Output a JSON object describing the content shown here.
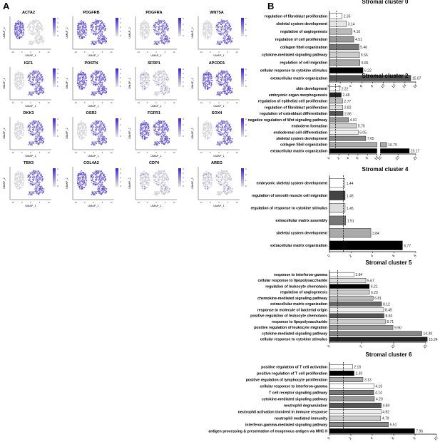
{
  "panel_a": {
    "letter": "A",
    "axis_x": "UMAP_1",
    "axis_y": "UMAP_2",
    "ticks": [
      "-10",
      "-5",
      "0",
      "5",
      "10"
    ],
    "maps": [
      {
        "gene": "ACTA2",
        "hot": "left",
        "legend": [
          "4",
          "3",
          "2",
          "1",
          "0"
        ]
      },
      {
        "gene": "PDGFRB",
        "hot": "all",
        "legend": [
          "4",
          "3",
          "2",
          "1",
          "0"
        ]
      },
      {
        "gene": "PDGFRA",
        "hot": "right",
        "legend": [
          "3",
          "2",
          "1",
          "0"
        ]
      },
      {
        "gene": "WNT5A",
        "hot": "right",
        "legend": [
          "3",
          "2",
          "1",
          "0"
        ]
      },
      {
        "gene": "IGF1",
        "hot": "right",
        "legend": [
          "4",
          "3",
          "2",
          "1",
          "0"
        ]
      },
      {
        "gene": "POSTN",
        "hot": "all",
        "legend": [
          "4",
          "3",
          "2",
          "1",
          "0"
        ]
      },
      {
        "gene": "SFRP1",
        "hot": "low",
        "legend": [
          "4",
          "3",
          "2",
          "1",
          "0"
        ]
      },
      {
        "gene": "APCDD1",
        "hot": "all",
        "legend": [
          "3",
          "2",
          "1",
          "0"
        ]
      },
      {
        "gene": "DKK3",
        "hot": "right",
        "legend": [
          "3",
          "2",
          "1",
          "0"
        ]
      },
      {
        "gene": "OSR2",
        "hot": "right",
        "legend": [
          "3",
          "2",
          "1",
          "0"
        ]
      },
      {
        "gene": "FGFR1",
        "hot": "all",
        "legend": [
          "3",
          "2",
          "1",
          "0"
        ]
      },
      {
        "gene": "SOX4",
        "hot": "right",
        "legend": [
          "3",
          "2",
          "1",
          "0"
        ]
      },
      {
        "gene": "TBX3",
        "hot": "right",
        "legend": [
          "3",
          "2",
          "1",
          "0"
        ]
      },
      {
        "gene": "COL4A2",
        "hot": "all",
        "legend": [
          "4",
          "3",
          "2",
          "1",
          "0"
        ]
      },
      {
        "gene": "CD74",
        "hot": "low",
        "legend": [
          "4",
          "3",
          "2",
          "1",
          "0"
        ]
      },
      {
        "gene": "AREG",
        "hot": "low",
        "legend": [
          "3",
          "2",
          "1",
          "0"
        ]
      }
    ]
  },
  "panel_b": {
    "letter": "B"
  },
  "chart_data": [
    {
      "type": "bar",
      "orientation": "horizontal",
      "title": "Stromal cluster 0",
      "categories": [
        "regulation of fibroblast proliferation",
        "skeletal system development",
        "regulation of angiogenesis",
        "regulation of cell proliferation",
        "collagen fibril organization",
        "cytokine-mediated signaling pathway",
        "regulation of cell migration",
        "cellular response to cytokine stimulus",
        "extracellular matrix organization"
      ],
      "values": [
        2.35,
        3.14,
        4.16,
        4.51,
        5.46,
        5.56,
        5.65,
        6.22,
        15.07
      ],
      "value_labels": [
        "2.35",
        "3.14",
        "4.16",
        "4.51",
        "5.46",
        "5.56",
        "5.65",
        "6.22",
        "15.07"
      ],
      "shades": [
        "#ffffff",
        "#e6e6e6",
        "#bbbbbb",
        "#999999",
        "#777777",
        "#cccccc",
        "#aaaaaa",
        "#000000",
        "#555555"
      ],
      "xlim": [
        0,
        16
      ],
      "xticks": [
        "0",
        "2",
        "4",
        "6",
        "8",
        "10",
        "12",
        "14",
        "16"
      ],
      "threshold": 1.3
    },
    {
      "type": "bar",
      "orientation": "horizontal",
      "title": "Stromal cluster 2",
      "categories": [
        "skin development",
        "embryonic organ morphogenesis",
        "regulation of epithelial cell proliferation",
        "regulation of fibroblast proliferation",
        "regulation of osteoblast differentiation",
        "negative regulation of Wnt signaling pathway",
        "endoderm formation",
        "endodermal cell differentiation",
        "skeletal system development",
        "collagen fibril organization",
        "extracellular matrix organization"
      ],
      "values": [
        2.22,
        2.48,
        2.77,
        2.82,
        2.86,
        4.01,
        5.7,
        6.05,
        7.65,
        16.79,
        23.17
      ],
      "value_labels": [
        "2.22",
        "2.48",
        "2.77",
        "2.82",
        "2.86",
        "4.01",
        "5.70",
        "6.05",
        "7.65",
        "16.79",
        "23.17"
      ],
      "shades": [
        "#ffffff",
        "#222222",
        "#bbbbbb",
        "#dddddd",
        "#555555",
        "#999999",
        "#cccccc",
        "#eeeeee",
        "#888888",
        "#aaaaaa",
        "#000000"
      ],
      "xlim": [
        0,
        25
      ],
      "axis_break": [
        10,
        15
      ],
      "xticks": [
        "0",
        "2",
        "4",
        "6",
        "8",
        "10",
        "15",
        "20",
        "25"
      ],
      "threshold": 1.3
    },
    {
      "type": "bar",
      "orientation": "horizontal",
      "title": "Stromal cluster 4",
      "categories": [
        "embryonic skeletal system development",
        "regulation of smooth muscle cell migration",
        "regulation of response to cytokine stimulus",
        "extracellular matrix assembly",
        "skeletal system development",
        "extracellular matrix organization"
      ],
      "values": [
        1.44,
        1.45,
        1.45,
        1.51,
        3.84,
        6.77
      ],
      "value_labels": [
        "1.44",
        "1.45",
        "1.45",
        "1.51",
        "3.84",
        "6.77"
      ],
      "shades": [
        "#ffffff",
        "#444444",
        "#dddddd",
        "#777777",
        "#aaaaaa",
        "#000000"
      ],
      "xlim": [
        0,
        8
      ],
      "xticks": [
        "0",
        "2",
        "4",
        "6",
        "8"
      ],
      "threshold": 1.3
    },
    {
      "type": "bar",
      "orientation": "horizontal",
      "title": "Stromal cluster 5",
      "categories": [
        "response to interferon-gamma",
        "cellular response to lipopolysaccharide",
        "regulation of leukocyte chemotaxis",
        "regulation of angiogenesis",
        "chemokine-mediated signaling pathway",
        "extracellular matrix organization",
        "response to molecule of bacterial origin",
        "positive regulation of leukocyte chemotaxis",
        "response to lipopolysaccharide",
        "positive regulation of leukocyte migration",
        "cytokine-mediated signaling pathway",
        "cellular response to cytokine stimulus"
      ],
      "values": [
        3.84,
        5.67,
        6.21,
        6.23,
        6.81,
        8.12,
        8.45,
        8.5,
        8.71,
        9.9,
        14.39,
        15.24
      ],
      "value_labels": [
        "3.84",
        "5.67",
        "6.21",
        "6.23",
        "6.81",
        "8.12",
        "8.45",
        "8.50",
        "8.71",
        "9.90",
        "14.39",
        "15.24"
      ],
      "shades": [
        "#ffffff",
        "#dddddd",
        "#000000",
        "#cccccc",
        "#bbbbbb",
        "#666666",
        "#eeeeee",
        "#555555",
        "#cccccc",
        "#999999",
        "#888888",
        "#222222"
      ],
      "xlim": [
        0,
        15
      ],
      "xticks": [
        "0",
        "5",
        "10",
        "15"
      ],
      "threshold": 1.3
    },
    {
      "type": "bar",
      "orientation": "horizontal",
      "title": "Stromal cluster 6",
      "categories": [
        "positive regulation of T cell activation",
        "positive regulation of T cell proliferation",
        "positive regulation of lymphocyte proliferation",
        "cellular response to interferon-gamma",
        "T cell receptor signaling pathway",
        "cytokine-mediated signaling pathway",
        "neutrophil degranulation",
        "neutrophil activation involved in immune response",
        "neutrophil mediated immunity",
        "interferon-gamma-mediated signaling pathway",
        "antigen processing & presentation of exogenous antigen via MHC II"
      ],
      "values": [
        2.16,
        2.3,
        3.13,
        4.16,
        4.14,
        4.2,
        4.84,
        4.82,
        4.79,
        5.51,
        7.96
      ],
      "value_labels": [
        "2.16",
        "2.30",
        "3.13",
        "4.16",
        "4.14",
        "4.20",
        "4.84",
        "4.82",
        "4.79",
        "5.51",
        "7.96"
      ],
      "shades": [
        "#ffffff",
        "#000000",
        "#aaaaaa",
        "#ffffff",
        "#777777",
        "#999999",
        "#555555",
        "#eeeeee",
        "#cccccc",
        "#888888",
        "#000000"
      ],
      "xlim": [
        0,
        10
      ],
      "xticks": [
        "0",
        "2",
        "4",
        "6",
        "8",
        "10"
      ],
      "threshold": 1.3
    }
  ]
}
